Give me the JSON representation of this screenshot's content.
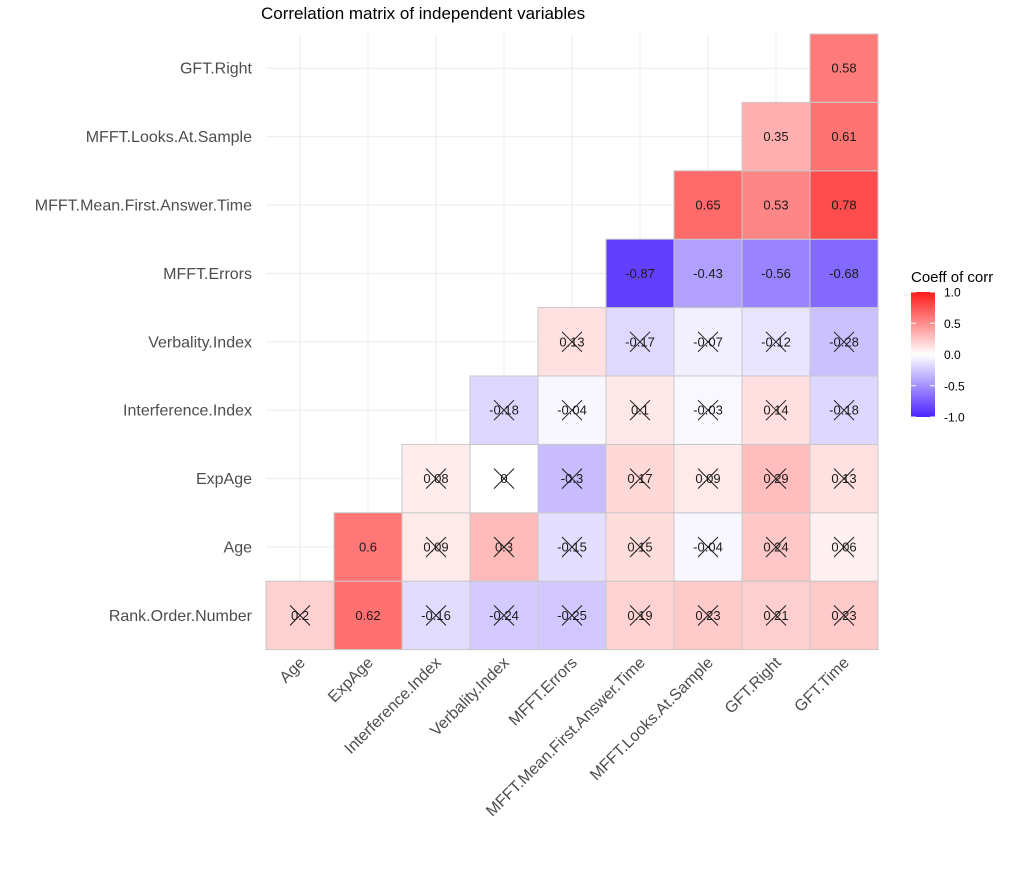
{
  "chart_data": {
    "type": "heatmap",
    "title": "Correlation matrix of independent variables",
    "x_labels": [
      "Age",
      "ExpAge",
      "Interference.Index",
      "Verbality.Index",
      "MFFT.Errors",
      "MFFT.Mean.First.Answer.Time",
      "MFFT.Looks.At.Sample",
      "GFT.Right",
      "GFT.Time"
    ],
    "y_labels": [
      "Rank.Order.Number",
      "Age",
      "ExpAge",
      "Interference.Index",
      "Verbality.Index",
      "MFFT.Errors",
      "MFFT.Mean.First.Answer.Time",
      "MFFT.Looks.At.Sample",
      "GFT.Right"
    ],
    "legend": {
      "title": "Coeff of corr",
      "ticks": [
        "1.0",
        "0.5",
        "0.0",
        "-0.5",
        "-1.0"
      ],
      "limits": [
        -1,
        1
      ],
      "low_color": "#4a22ff",
      "mid_color": "#ffffff",
      "high_color": "#ff1a1a"
    },
    "cells": [
      {
        "x": "Age",
        "y": "Rank.Order.Number",
        "value": 0.2,
        "label": "0.2",
        "crossed": true
      },
      {
        "x": "ExpAge",
        "y": "Rank.Order.Number",
        "value": 0.62,
        "label": "0.62",
        "crossed": false
      },
      {
        "x": "Interference.Index",
        "y": "Rank.Order.Number",
        "value": -0.16,
        "label": "-0.16",
        "crossed": true
      },
      {
        "x": "Verbality.Index",
        "y": "Rank.Order.Number",
        "value": -0.24,
        "label": "-0.24",
        "crossed": true
      },
      {
        "x": "MFFT.Errors",
        "y": "Rank.Order.Number",
        "value": -0.25,
        "label": "-0.25",
        "crossed": true
      },
      {
        "x": "MFFT.Mean.First.Answer.Time",
        "y": "Rank.Order.Number",
        "value": 0.19,
        "label": "0.19",
        "crossed": true
      },
      {
        "x": "MFFT.Looks.At.Sample",
        "y": "Rank.Order.Number",
        "value": 0.23,
        "label": "0.23",
        "crossed": true
      },
      {
        "x": "GFT.Right",
        "y": "Rank.Order.Number",
        "value": 0.21,
        "label": "0.21",
        "crossed": true
      },
      {
        "x": "GFT.Time",
        "y": "Rank.Order.Number",
        "value": 0.23,
        "label": "0.23",
        "crossed": true
      },
      {
        "x": "ExpAge",
        "y": "Age",
        "value": 0.6,
        "label": "0.6",
        "crossed": false
      },
      {
        "x": "Interference.Index",
        "y": "Age",
        "value": 0.09,
        "label": "0.09",
        "crossed": true
      },
      {
        "x": "Verbality.Index",
        "y": "Age",
        "value": 0.3,
        "label": "0.3",
        "crossed": true
      },
      {
        "x": "MFFT.Errors",
        "y": "Age",
        "value": -0.15,
        "label": "-0.15",
        "crossed": true
      },
      {
        "x": "MFFT.Mean.First.Answer.Time",
        "y": "Age",
        "value": 0.15,
        "label": "0.15",
        "crossed": true
      },
      {
        "x": "MFFT.Looks.At.Sample",
        "y": "Age",
        "value": -0.04,
        "label": "-0.04",
        "crossed": true
      },
      {
        "x": "GFT.Right",
        "y": "Age",
        "value": 0.24,
        "label": "0.24",
        "crossed": true
      },
      {
        "x": "GFT.Time",
        "y": "Age",
        "value": 0.06,
        "label": "0.06",
        "crossed": true
      },
      {
        "x": "Interference.Index",
        "y": "ExpAge",
        "value": 0.08,
        "label": "0.08",
        "crossed": true
      },
      {
        "x": "Verbality.Index",
        "y": "ExpAge",
        "value": 0,
        "label": "0",
        "crossed": true
      },
      {
        "x": "MFFT.Errors",
        "y": "ExpAge",
        "value": -0.3,
        "label": "-0.3",
        "crossed": true
      },
      {
        "x": "MFFT.Mean.First.Answer.Time",
        "y": "ExpAge",
        "value": 0.17,
        "label": "0.17",
        "crossed": true
      },
      {
        "x": "MFFT.Looks.At.Sample",
        "y": "ExpAge",
        "value": 0.09,
        "label": "0.09",
        "crossed": true
      },
      {
        "x": "GFT.Right",
        "y": "ExpAge",
        "value": 0.29,
        "label": "0.29",
        "crossed": true
      },
      {
        "x": "GFT.Time",
        "y": "ExpAge",
        "value": 0.13,
        "label": "0.13",
        "crossed": true
      },
      {
        "x": "Verbality.Index",
        "y": "Interference.Index",
        "value": -0.18,
        "label": "-0.18",
        "crossed": true
      },
      {
        "x": "MFFT.Errors",
        "y": "Interference.Index",
        "value": -0.04,
        "label": "-0.04",
        "crossed": true
      },
      {
        "x": "MFFT.Mean.First.Answer.Time",
        "y": "Interference.Index",
        "value": 0.1,
        "label": "0.1",
        "crossed": true
      },
      {
        "x": "MFFT.Looks.At.Sample",
        "y": "Interference.Index",
        "value": -0.03,
        "label": "-0.03",
        "crossed": true
      },
      {
        "x": "GFT.Right",
        "y": "Interference.Index",
        "value": 0.14,
        "label": "0.14",
        "crossed": true
      },
      {
        "x": "GFT.Time",
        "y": "Interference.Index",
        "value": -0.18,
        "label": "-0.18",
        "crossed": true
      },
      {
        "x": "MFFT.Errors",
        "y": "Verbality.Index",
        "value": 0.13,
        "label": "0.13",
        "crossed": true
      },
      {
        "x": "MFFT.Mean.First.Answer.Time",
        "y": "Verbality.Index",
        "value": -0.17,
        "label": "-0.17",
        "crossed": true
      },
      {
        "x": "MFFT.Looks.At.Sample",
        "y": "Verbality.Index",
        "value": -0.07,
        "label": "-0.07",
        "crossed": true
      },
      {
        "x": "GFT.Right",
        "y": "Verbality.Index",
        "value": -0.12,
        "label": "-0.12",
        "crossed": true
      },
      {
        "x": "GFT.Time",
        "y": "Verbality.Index",
        "value": -0.28,
        "label": "-0.28",
        "crossed": true
      },
      {
        "x": "MFFT.Mean.First.Answer.Time",
        "y": "MFFT.Errors",
        "value": -0.87,
        "label": "-0.87",
        "crossed": false
      },
      {
        "x": "MFFT.Looks.At.Sample",
        "y": "MFFT.Errors",
        "value": -0.43,
        "label": "-0.43",
        "crossed": false
      },
      {
        "x": "GFT.Right",
        "y": "MFFT.Errors",
        "value": -0.56,
        "label": "-0.56",
        "crossed": false
      },
      {
        "x": "GFT.Time",
        "y": "MFFT.Errors",
        "value": -0.68,
        "label": "-0.68",
        "crossed": false
      },
      {
        "x": "MFFT.Looks.At.Sample",
        "y": "MFFT.Mean.First.Answer.Time",
        "value": 0.65,
        "label": "0.65",
        "crossed": false
      },
      {
        "x": "GFT.Right",
        "y": "MFFT.Mean.First.Answer.Time",
        "value": 0.53,
        "label": "0.53",
        "crossed": false
      },
      {
        "x": "GFT.Time",
        "y": "MFFT.Mean.First.Answer.Time",
        "value": 0.78,
        "label": "0.78",
        "crossed": false
      },
      {
        "x": "GFT.Right",
        "y": "MFFT.Looks.At.Sample",
        "value": 0.35,
        "label": "0.35",
        "crossed": false
      },
      {
        "x": "GFT.Time",
        "y": "MFFT.Looks.At.Sample",
        "value": 0.61,
        "label": "0.61",
        "crossed": false
      },
      {
        "x": "GFT.Time",
        "y": "GFT.Right",
        "value": 0.58,
        "label": "0.58",
        "crossed": false
      }
    ]
  }
}
